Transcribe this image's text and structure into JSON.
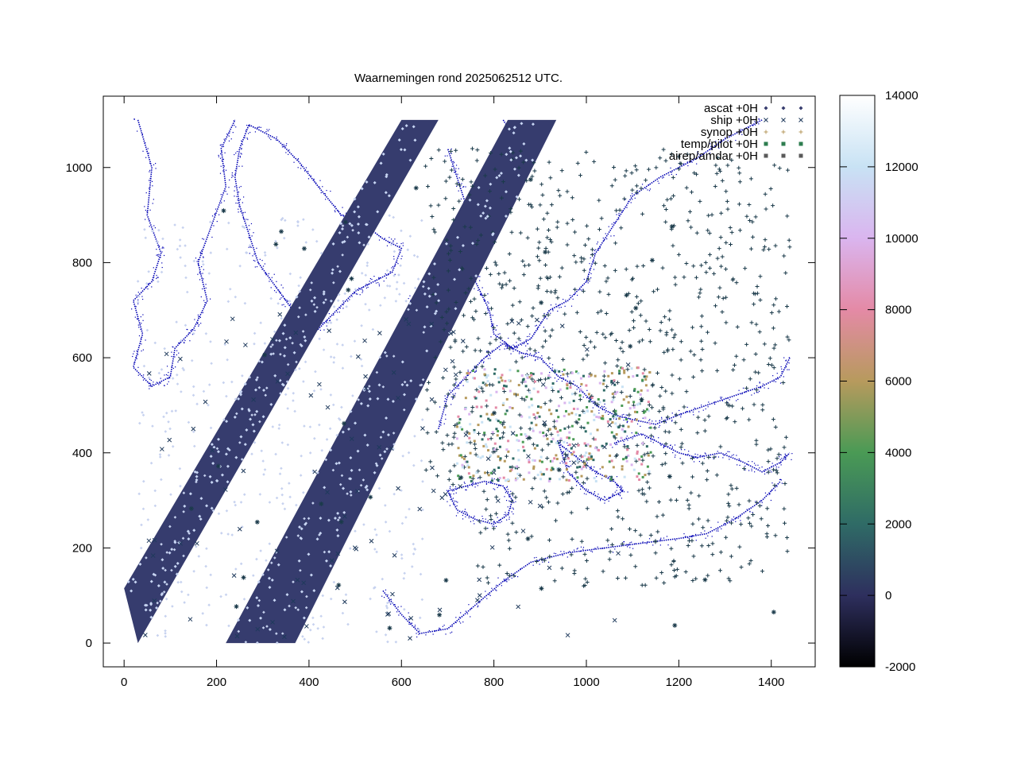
{
  "chart_data": {
    "type": "scatter",
    "title": "Waarnemingen rond 2025062512 UTC.",
    "xlim": [
      -45,
      1495
    ],
    "ylim": [
      -50,
      1150
    ],
    "x_ticks": [
      0,
      200,
      400,
      600,
      800,
      1000,
      1200,
      1400
    ],
    "y_ticks": [
      0,
      200,
      400,
      600,
      800,
      1000
    ],
    "grid": false,
    "legend_position": "top-right",
    "series": [
      {
        "name": "ascat +0H",
        "marker": "diamond"
      },
      {
        "name": "ship +0H",
        "marker": "x"
      },
      {
        "name": "synop +0H",
        "marker": "plus"
      },
      {
        "name": "temp/pilot +0H",
        "marker": "asterisk"
      },
      {
        "name": "airep/amdar +0H",
        "marker": "square"
      }
    ],
    "swaths": [
      {
        "name": "ascat-swath-1",
        "corners": [
          [
            0,
            115
          ],
          [
            30,
            0
          ],
          [
            680,
            1100
          ],
          [
            600,
            1100
          ]
        ]
      },
      {
        "name": "ascat-swath-2",
        "corners": [
          [
            220,
            0
          ],
          [
            370,
            0
          ],
          [
            935,
            1100
          ],
          [
            830,
            1100
          ]
        ]
      }
    ],
    "colorbar": {
      "min": -2000,
      "max": 14000,
      "ticks": [
        -2000,
        0,
        2000,
        4000,
        6000,
        8000,
        10000,
        12000,
        14000
      ],
      "stops": [
        {
          "value": -2000,
          "color": "#000000"
        },
        {
          "value": 0,
          "color": "#2e2f5e"
        },
        {
          "value": 2000,
          "color": "#2f6b66"
        },
        {
          "value": 4000,
          "color": "#4a9a55"
        },
        {
          "value": 6000,
          "color": "#b79a5d"
        },
        {
          "value": 8000,
          "color": "#e48aa6"
        },
        {
          "value": 10000,
          "color": "#dab5ef"
        },
        {
          "value": 12000,
          "color": "#c8e2f4"
        },
        {
          "value": 14000,
          "color": "#ffffff"
        }
      ]
    }
  },
  "colors": {
    "coastline": "#0000b4",
    "ascat": "#363c6e",
    "ship": "#1f3a5c",
    "synop": "#1a3a4a",
    "temp_pilot": "#2e7d4f",
    "airep_amdar": "#c7d2ef"
  }
}
